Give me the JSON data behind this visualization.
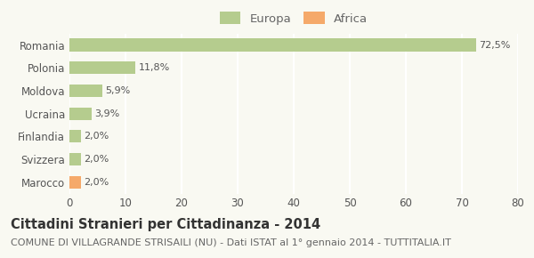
{
  "categories": [
    "Romania",
    "Polonia",
    "Moldova",
    "Ucraina",
    "Finlandia",
    "Svizzera",
    "Marocco"
  ],
  "values": [
    72.5,
    11.8,
    5.9,
    3.9,
    2.0,
    2.0,
    2.0
  ],
  "labels": [
    "72,5%",
    "11,8%",
    "5,9%",
    "3,9%",
    "2,0%",
    "2,0%",
    "2,0%"
  ],
  "bar_colors": [
    "#b5cc8e",
    "#b5cc8e",
    "#b5cc8e",
    "#b5cc8e",
    "#b5cc8e",
    "#b5cc8e",
    "#f5a96a"
  ],
  "legend_items": [
    {
      "label": "Europa",
      "color": "#b5cc8e"
    },
    {
      "label": "Africa",
      "color": "#f5a96a"
    }
  ],
  "xlim": [
    0,
    80
  ],
  "xticks": [
    0,
    10,
    20,
    30,
    40,
    50,
    60,
    70,
    80
  ],
  "title": "Cittadini Stranieri per Cittadinanza - 2014",
  "subtitle": "COMUNE DI VILLAGRANDE STRISAILI (NU) - Dati ISTAT al 1° gennaio 2014 - TUTTITALIA.IT",
  "background_color": "#f9f9f2",
  "grid_color": "#ffffff",
  "bar_height": 0.55,
  "title_fontsize": 10.5,
  "subtitle_fontsize": 8,
  "label_fontsize": 8,
  "tick_fontsize": 8.5,
  "legend_fontsize": 9.5
}
